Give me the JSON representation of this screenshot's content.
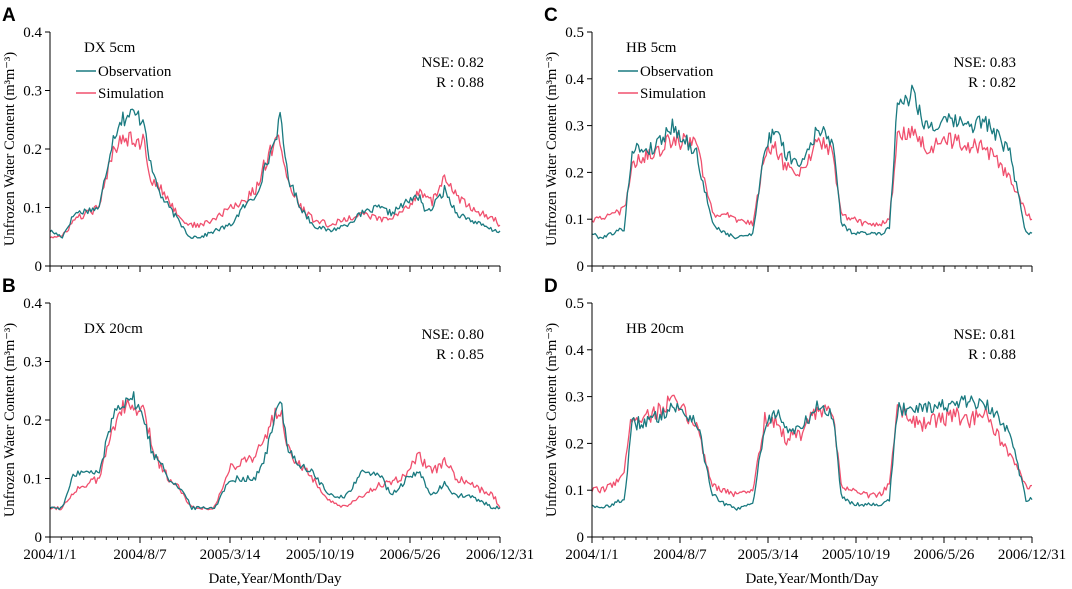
{
  "figure": {
    "xlabel": "Date,Year/Month/Day",
    "ylabel": "Unfrozen Water Content (m³m⁻³)",
    "x_tick_labels": [
      "2004/1/1",
      "2004/8/7",
      "2005/3/14",
      "2005/10/19",
      "2006/5/26",
      "2006/12/31"
    ],
    "colors": {
      "observation": "#1a7a80",
      "simulation": "#f0506e",
      "axis": "#000000"
    }
  },
  "chart_data": [
    {
      "type": "line",
      "panel": "A",
      "title": "DX 5cm",
      "ylim": [
        0,
        0.4
      ],
      "yticks": [
        0,
        0.1,
        0.2,
        0.3,
        0.4
      ],
      "ytick_labels": [
        "0",
        "0.1",
        "0.2",
        "0.3",
        "0.4"
      ],
      "xlim": [
        0,
        1095
      ],
      "stats": [
        "NSE: 0.82",
        "R : 0.88"
      ],
      "legend": [
        "Observation",
        "Simulation"
      ],
      "series": [
        {
          "name": "Observation",
          "x": [
            0,
            30,
            60,
            120,
            150,
            170,
            200,
            230,
            245,
            270,
            290,
            320,
            340,
            370,
            400,
            440,
            470,
            500,
            520,
            540,
            560,
            580,
            610,
            640,
            680,
            720,
            760,
            800,
            830,
            870,
            900,
            915,
            930,
            960,
            990,
            1020,
            1050,
            1080,
            1095
          ],
          "y": [
            0.06,
            0.05,
            0.09,
            0.1,
            0.21,
            0.25,
            0.26,
            0.25,
            0.17,
            0.12,
            0.1,
            0.07,
            0.05,
            0.05,
            0.06,
            0.07,
            0.1,
            0.12,
            0.16,
            0.2,
            0.25,
            0.15,
            0.1,
            0.07,
            0.06,
            0.07,
            0.09,
            0.1,
            0.09,
            0.11,
            0.12,
            0.09,
            0.1,
            0.13,
            0.09,
            0.08,
            0.07,
            0.06,
            0.06
          ]
        },
        {
          "name": "Simulation",
          "x": [
            0,
            30,
            60,
            120,
            150,
            170,
            200,
            230,
            245,
            270,
            290,
            320,
            340,
            370,
            400,
            440,
            470,
            500,
            520,
            540,
            560,
            580,
            610,
            640,
            680,
            720,
            760,
            800,
            830,
            870,
            900,
            915,
            930,
            960,
            990,
            1020,
            1050,
            1080,
            1095
          ],
          "y": [
            0.05,
            0.05,
            0.08,
            0.1,
            0.19,
            0.22,
            0.22,
            0.21,
            0.15,
            0.13,
            0.11,
            0.08,
            0.07,
            0.07,
            0.08,
            0.1,
            0.11,
            0.13,
            0.17,
            0.2,
            0.22,
            0.14,
            0.1,
            0.08,
            0.07,
            0.08,
            0.09,
            0.08,
            0.08,
            0.1,
            0.13,
            0.12,
            0.11,
            0.15,
            0.12,
            0.1,
            0.09,
            0.08,
            0.07
          ]
        }
      ]
    },
    {
      "type": "line",
      "panel": "B",
      "title": "DX 20cm",
      "ylim": [
        0,
        0.4
      ],
      "yticks": [
        0,
        0.1,
        0.2,
        0.3,
        0.4
      ],
      "ytick_labels": [
        "0",
        "0.1",
        "0.2",
        "0.3",
        "0.4"
      ],
      "xlim": [
        0,
        1095
      ],
      "stats": [
        "NSE: 0.80",
        "R : 0.85"
      ],
      "legend": [],
      "series": [
        {
          "name": "Observation",
          "x": [
            0,
            30,
            60,
            120,
            150,
            170,
            200,
            230,
            250,
            270,
            290,
            320,
            345,
            370,
            400,
            440,
            470,
            500,
            520,
            540,
            560,
            580,
            610,
            640,
            680,
            720,
            760,
            800,
            830,
            870,
            900,
            915,
            930,
            960,
            990,
            1020,
            1050,
            1080,
            1095
          ],
          "y": [
            0.05,
            0.05,
            0.11,
            0.11,
            0.2,
            0.23,
            0.24,
            0.2,
            0.14,
            0.13,
            0.1,
            0.08,
            0.05,
            0.05,
            0.05,
            0.1,
            0.1,
            0.1,
            0.13,
            0.18,
            0.24,
            0.15,
            0.12,
            0.11,
            0.07,
            0.07,
            0.11,
            0.11,
            0.07,
            0.1,
            0.11,
            0.09,
            0.07,
            0.09,
            0.07,
            0.07,
            0.06,
            0.05,
            0.05
          ]
        },
        {
          "name": "Simulation",
          "x": [
            0,
            30,
            60,
            120,
            150,
            170,
            200,
            230,
            250,
            270,
            290,
            320,
            345,
            370,
            400,
            440,
            470,
            500,
            520,
            540,
            560,
            580,
            610,
            640,
            680,
            720,
            760,
            800,
            830,
            870,
            900,
            915,
            930,
            960,
            990,
            1020,
            1050,
            1080,
            1095
          ],
          "y": [
            0.05,
            0.05,
            0.08,
            0.1,
            0.18,
            0.22,
            0.22,
            0.21,
            0.15,
            0.12,
            0.1,
            0.08,
            0.05,
            0.05,
            0.05,
            0.12,
            0.13,
            0.14,
            0.16,
            0.2,
            0.22,
            0.15,
            0.12,
            0.1,
            0.06,
            0.05,
            0.07,
            0.09,
            0.09,
            0.11,
            0.14,
            0.12,
            0.11,
            0.13,
            0.1,
            0.09,
            0.08,
            0.07,
            0.05
          ]
        }
      ]
    },
    {
      "type": "line",
      "panel": "C",
      "title": "HB 5cm",
      "ylim": [
        0,
        0.5
      ],
      "yticks": [
        0,
        0.1,
        0.2,
        0.3,
        0.4,
        0.5
      ],
      "ytick_labels": [
        "0",
        "0.1",
        "0.2",
        "0.3",
        "0.4",
        "0.5"
      ],
      "xlim": [
        0,
        1095
      ],
      "stats": [
        "NSE: 0.83",
        "R : 0.82"
      ],
      "legend": [
        "Observation",
        "Simulation"
      ],
      "series": [
        {
          "name": "Observation",
          "x": [
            0,
            20,
            50,
            80,
            100,
            150,
            200,
            260,
            300,
            330,
            360,
            400,
            430,
            460,
            480,
            520,
            560,
            600,
            620,
            650,
            680,
            720,
            740,
            760,
            800,
            830,
            860,
            900,
            940,
            980,
            1040,
            1080,
            1095
          ],
          "y": [
            0.07,
            0.06,
            0.07,
            0.08,
            0.25,
            0.25,
            0.3,
            0.24,
            0.09,
            0.07,
            0.06,
            0.07,
            0.25,
            0.3,
            0.24,
            0.22,
            0.29,
            0.27,
            0.09,
            0.07,
            0.07,
            0.07,
            0.08,
            0.35,
            0.37,
            0.3,
            0.3,
            0.31,
            0.3,
            0.31,
            0.24,
            0.07,
            0.07
          ]
        },
        {
          "name": "Simulation",
          "x": [
            0,
            20,
            50,
            80,
            100,
            150,
            200,
            260,
            300,
            330,
            360,
            400,
            430,
            460,
            480,
            520,
            560,
            600,
            620,
            650,
            680,
            720,
            740,
            760,
            800,
            830,
            860,
            900,
            940,
            980,
            1040,
            1080,
            1095
          ],
          "y": [
            0.1,
            0.1,
            0.11,
            0.12,
            0.22,
            0.24,
            0.27,
            0.26,
            0.11,
            0.11,
            0.1,
            0.09,
            0.24,
            0.25,
            0.21,
            0.2,
            0.27,
            0.24,
            0.11,
            0.1,
            0.09,
            0.09,
            0.1,
            0.27,
            0.29,
            0.25,
            0.26,
            0.27,
            0.26,
            0.25,
            0.19,
            0.11,
            0.1
          ]
        }
      ]
    },
    {
      "type": "line",
      "panel": "D",
      "title": "HB 20cm",
      "ylim": [
        0,
        0.5
      ],
      "yticks": [
        0,
        0.1,
        0.2,
        0.3,
        0.4,
        0.5
      ],
      "ytick_labels": [
        "0",
        "0.1",
        "0.2",
        "0.3",
        "0.4",
        "0.5"
      ],
      "xlim": [
        0,
        1095
      ],
      "stats": [
        "NSE: 0.81",
        "R : 0.88"
      ],
      "legend": [],
      "series": [
        {
          "name": "Observation",
          "x": [
            0,
            20,
            50,
            80,
            100,
            150,
            200,
            260,
            300,
            330,
            360,
            400,
            430,
            460,
            480,
            520,
            560,
            600,
            620,
            650,
            680,
            720,
            740,
            760,
            800,
            830,
            860,
            900,
            940,
            980,
            1040,
            1080,
            1095
          ],
          "y": [
            0.07,
            0.06,
            0.07,
            0.08,
            0.24,
            0.25,
            0.28,
            0.25,
            0.09,
            0.07,
            0.06,
            0.07,
            0.24,
            0.27,
            0.23,
            0.23,
            0.28,
            0.26,
            0.09,
            0.07,
            0.07,
            0.07,
            0.08,
            0.27,
            0.28,
            0.28,
            0.28,
            0.28,
            0.29,
            0.28,
            0.23,
            0.08,
            0.08
          ]
        },
        {
          "name": "Simulation",
          "x": [
            0,
            20,
            50,
            80,
            100,
            150,
            200,
            260,
            300,
            330,
            360,
            400,
            430,
            460,
            480,
            520,
            560,
            600,
            620,
            650,
            680,
            720,
            740,
            760,
            800,
            830,
            860,
            900,
            940,
            980,
            1040,
            1080,
            1095
          ],
          "y": [
            0.1,
            0.1,
            0.11,
            0.14,
            0.26,
            0.26,
            0.29,
            0.24,
            0.11,
            0.1,
            0.09,
            0.1,
            0.25,
            0.25,
            0.21,
            0.22,
            0.27,
            0.26,
            0.11,
            0.1,
            0.09,
            0.09,
            0.12,
            0.28,
            0.25,
            0.24,
            0.25,
            0.26,
            0.25,
            0.26,
            0.17,
            0.11,
            0.11
          ]
        }
      ]
    }
  ]
}
